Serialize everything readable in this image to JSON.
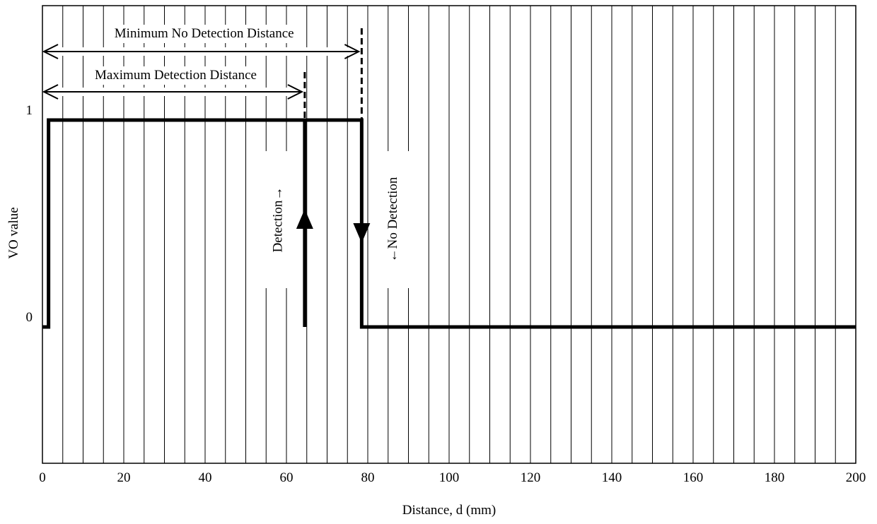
{
  "chart_data": {
    "type": "line",
    "xlabel": "Distance, d (mm)",
    "ylabel": "VO value",
    "xlim": [
      0,
      200
    ],
    "x_ticks": [
      0,
      20,
      40,
      60,
      80,
      100,
      120,
      140,
      160,
      180,
      200
    ],
    "y_ticks": [
      0,
      1
    ],
    "grid": "vertical lines every 5 mm",
    "series": [
      {
        "values": [
          {
            "x": 0,
            "y": 0
          },
          {
            "x": 1.5,
            "y": 0
          },
          {
            "x": 1.5,
            "y": 1
          },
          {
            "x": 78.5,
            "y": 1
          },
          {
            "x": 78.5,
            "y": 0
          },
          {
            "x": 200,
            "y": 0
          }
        ]
      },
      {
        "values": [
          {
            "x": 64.5,
            "y": 0
          },
          {
            "x": 64.5,
            "y": 1
          }
        ]
      }
    ],
    "arrows": [
      {
        "label": "Detection→",
        "x": 64.5,
        "direction": "up"
      },
      {
        "label": "←No Detection",
        "x": 78.5,
        "direction": "down"
      }
    ],
    "annotations": [
      {
        "text": "Minimum No Detection Distance",
        "x_from": 0,
        "x_to": 78.5
      },
      {
        "text": "Maximum Detection Distance",
        "x_from": 0,
        "x_to": 64.5
      }
    ]
  }
}
